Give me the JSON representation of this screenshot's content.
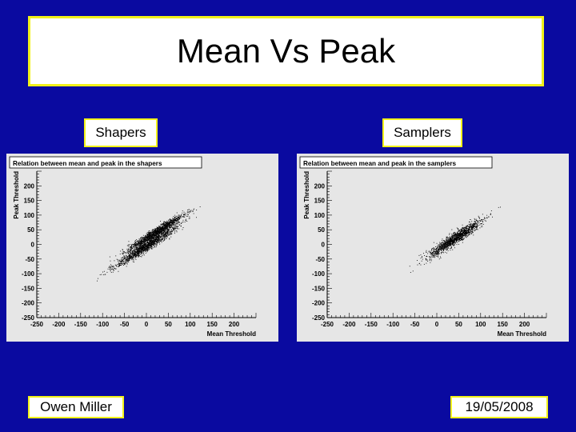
{
  "slide": {
    "title": "Mean Vs Peak",
    "left_label": "Shapers",
    "right_label": "Samplers",
    "author": "Owen Miller",
    "date": "19/05/2008"
  },
  "colors": {
    "background": "#0a0aa0",
    "box_border": "#f2f21a",
    "plot_frame": "#e6e6e6",
    "points": "#000000"
  },
  "chart_data": [
    {
      "type": "scatter",
      "title": "Relation between mean and peak in the shapers",
      "xlabel": "Mean Threshold",
      "ylabel": "Peak Threshold",
      "xlim": [
        -250,
        250
      ],
      "ylim": [
        -250,
        250
      ],
      "xticks": [
        -250,
        -200,
        -150,
        -100,
        -50,
        0,
        50,
        100,
        150,
        200
      ],
      "yticks": [
        200,
        150,
        100,
        50,
        0,
        -50,
        -100,
        -150,
        -200,
        -250
      ],
      "grid": false,
      "clusters": [
        {
          "x_range": [
            -80,
            80
          ],
          "y_center_at_x0": -5,
          "slope": 0.95,
          "spread_y": 9
        },
        {
          "x_range": [
            -50,
            90
          ],
          "y_center_at_x0": 22,
          "slope": 0.95,
          "spread_y": 8
        }
      ]
    },
    {
      "type": "scatter",
      "title": "Relation between mean and peak in the samplers",
      "xlabel": "Mean Threshold",
      "ylabel": "Peak Threshold",
      "xlim": [
        -250,
        250
      ],
      "ylim": [
        -250,
        250
      ],
      "xticks": [
        -250,
        -200,
        -150,
        -100,
        -50,
        0,
        50,
        100,
        150,
        200
      ],
      "yticks": [
        200,
        150,
        100,
        50,
        0,
        -50,
        -100,
        -150,
        -200,
        -250
      ],
      "grid": false,
      "clusters": [
        {
          "x_range": [
            -30,
            110
          ],
          "y_center_at_x0": -20,
          "slope": 1.0,
          "spread_y": 10
        }
      ]
    }
  ]
}
